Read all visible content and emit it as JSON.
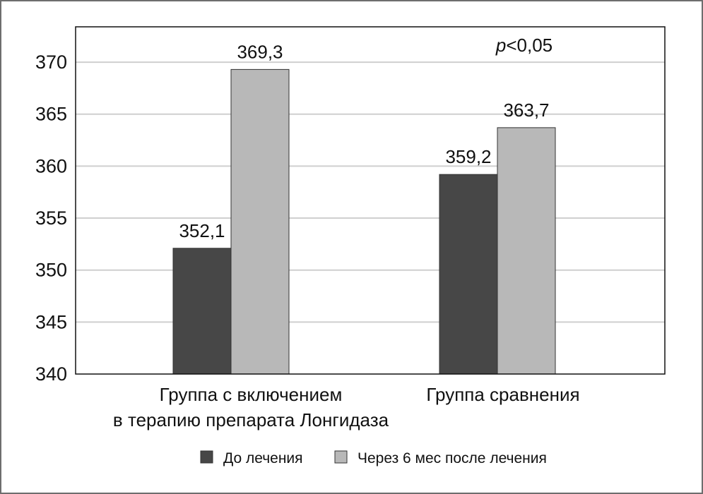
{
  "chart_data": {
    "type": "bar",
    "title": "",
    "xlabel": "",
    "ylabel": "",
    "categories": [
      [
        "Группа с включением",
        "в терапию препарата Лонгидаза"
      ],
      [
        "Группа сравнения"
      ]
    ],
    "series": [
      {
        "name": "До лечения",
        "color": "#474747",
        "values": [
          352.1,
          359.2
        ],
        "labels": [
          "352,1",
          "359,2"
        ]
      },
      {
        "name": "Через 6 мес после лечения",
        "color": "#b8b8b8",
        "values": [
          369.3,
          363.7
        ],
        "labels": [
          "369,3",
          "363,7"
        ]
      }
    ],
    "ylim": [
      340,
      373.4
    ],
    "yticks": [
      340,
      345,
      350,
      355,
      360,
      365,
      370
    ],
    "grid": true,
    "legend_position": "bottom",
    "annotations": [
      {
        "text_italic": "p",
        "text": "<0,05",
        "group": 1
      }
    ]
  }
}
